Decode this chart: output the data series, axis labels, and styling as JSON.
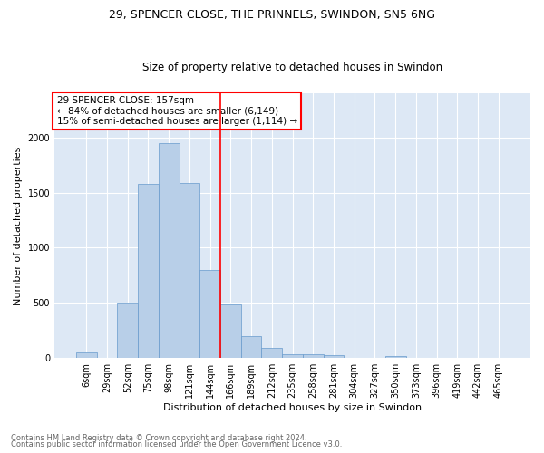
{
  "title1": "29, SPENCER CLOSE, THE PRINNELS, SWINDON, SN5 6NG",
  "title2": "Size of property relative to detached houses in Swindon",
  "xlabel": "Distribution of detached houses by size in Swindon",
  "ylabel": "Number of detached properties",
  "bar_color": "#b8cfe8",
  "bar_edge_color": "#6699cc",
  "background_color": "#dde8f5",
  "grid_color": "white",
  "bins": [
    "6sqm",
    "29sqm",
    "52sqm",
    "75sqm",
    "98sqm",
    "121sqm",
    "144sqm",
    "166sqm",
    "189sqm",
    "212sqm",
    "235sqm",
    "258sqm",
    "281sqm",
    "304sqm",
    "327sqm",
    "350sqm",
    "373sqm",
    "396sqm",
    "419sqm",
    "442sqm",
    "465sqm"
  ],
  "values": [
    55,
    0,
    500,
    1580,
    1950,
    1590,
    800,
    490,
    200,
    90,
    38,
    35,
    25,
    0,
    0,
    20,
    0,
    0,
    0,
    0,
    0
  ],
  "vline_x_idx": 6.5,
  "vline_color": "red",
  "annotation_text": "29 SPENCER CLOSE: 157sqm\n← 84% of detached houses are smaller (6,149)\n15% of semi-detached houses are larger (1,114) →",
  "annotation_box_color": "white",
  "annotation_border_color": "red",
  "footnote1": "Contains HM Land Registry data © Crown copyright and database right 2024.",
  "footnote2": "Contains public sector information licensed under the Open Government Licence v3.0.",
  "ylim": [
    0,
    2400
  ],
  "title_fontsize": 9,
  "subtitle_fontsize": 8.5,
  "ylabel_fontsize": 8,
  "xlabel_fontsize": 8,
  "tick_fontsize": 7,
  "annotation_fontsize": 7.5,
  "footnote_fontsize": 6
}
